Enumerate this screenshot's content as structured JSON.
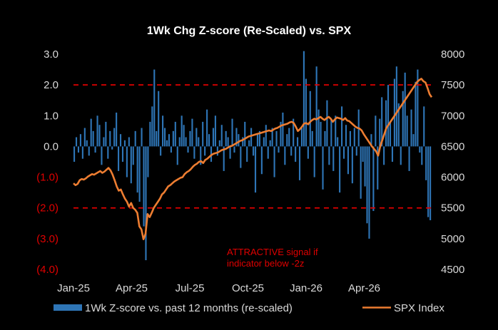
{
  "chart_data": {
    "type": "bar+line",
    "title": "1Wk Chg Z-score (Re-Scaled)  vs. SPX",
    "x_tick_labels": [
      "Jan-25",
      "Apr-25",
      "Jul-25",
      "Oct-25",
      "Jan-26",
      "Apr-26"
    ],
    "left_axis": {
      "ylim": [
        -4,
        3
      ],
      "tick_values": [
        3,
        2,
        1,
        0,
        -1,
        -2,
        -3,
        -4
      ],
      "tick_labels": [
        "3.0",
        "2.0",
        "1.0",
        "0.0",
        "(1.0)",
        "(2.0)",
        "(3.0)",
        "(4.0)"
      ]
    },
    "right_axis": {
      "ylim": [
        4500,
        8000
      ],
      "tick_values": [
        8000,
        7500,
        7000,
        6500,
        6000,
        5500,
        5000,
        4500
      ],
      "tick_labels": [
        "8000",
        "7500",
        "7000",
        "6500",
        "6000",
        "5500",
        "5000",
        "4500"
      ]
    },
    "reference_lines": [
      {
        "axis": "left",
        "value": 2,
        "style": "dashed",
        "color": "#e00000"
      },
      {
        "axis": "left",
        "value": -2,
        "style": "dashed",
        "color": "#e00000"
      }
    ],
    "annotation": {
      "lines": [
        "ATTRACTIVE  signal if",
        "indicator below -2z"
      ],
      "color": "#e00000"
    },
    "series": [
      {
        "name": "1Wk Z-score vs. past 12 months (re-scaled)",
        "kind": "bar",
        "axis": "left",
        "color": "#2e75b6",
        "values": [
          -0.5,
          0.3,
          -0.2,
          0.4,
          -0.4,
          0.6,
          0.2,
          -0.3,
          0.9,
          0.5,
          -0.2,
          1.0,
          0.7,
          -0.6,
          0.3,
          0.8,
          -0.4,
          0.5,
          -0.1,
          0.6,
          1.1,
          -0.8,
          0.4,
          -0.5,
          0.2,
          -1.0,
          0.3,
          -1.2,
          -0.6,
          0.5,
          -1.5,
          -1.8,
          0.6,
          -2.6,
          -3.7,
          -1.0,
          0.8,
          1.3,
          2.5,
          0.5,
          1.8,
          -0.3,
          1.0,
          0.6,
          0.2,
          0.4,
          -0.2,
          0.5,
          0.8,
          -0.6,
          0.3,
          1.0,
          0.7,
          0.3,
          -0.2,
          0.5,
          0.9,
          -0.4,
          0.6,
          0.3,
          -0.6,
          0.8,
          -0.3,
          1.2,
          0.4,
          -0.5,
          0.6,
          1.0,
          -0.3,
          0.2,
          0.7,
          -0.8,
          0.5,
          0.3,
          -0.4,
          0.9,
          -0.2,
          0.6,
          0.4,
          -0.7,
          0.3,
          0.8,
          -0.5,
          0.2,
          0.6,
          -0.3,
          -1.5,
          0.4,
          0.5,
          -0.9,
          0.3,
          0.7,
          -0.4,
          0.2,
          0.6,
          -1.0,
          0.5,
          -0.2,
          0.8,
          1.1,
          -0.6,
          0.4,
          0.6,
          -0.3,
          0.9,
          -0.5,
          0.3,
          -1.1,
          0.6,
          3.1,
          2.2,
          -0.4,
          1.8,
          0.5,
          -1.0,
          2.6,
          1.2,
          0.8,
          -1.4,
          0.5,
          1.5,
          -0.6,
          0.9,
          -0.8,
          1.0,
          0.3,
          -1.5,
          1.3,
          -0.4,
          0.7,
          -0.9,
          0.5,
          -1.2,
          0.6,
          -0.3,
          1.2,
          -1.7,
          -0.5,
          -1.3,
          -2.5,
          -3.0,
          0.4,
          -2.1,
          1.0,
          -1.4,
          0.9,
          1.6,
          -0.6,
          1.5,
          2.0,
          0.8,
          -0.5,
          2.2,
          2.6,
          1.4,
          -0.6,
          1.8,
          2.4,
          1.0,
          -0.8,
          1.2,
          0.4,
          2.1,
          2.5,
          -0.2,
          -0.6,
          1.3,
          -1.1,
          -2.3,
          -2.4
        ]
      },
      {
        "name": "SPX Index",
        "kind": "line",
        "axis": "right",
        "color": "#ed7d31",
        "values": [
          5900,
          5870,
          5890,
          5950,
          5970,
          5960,
          5980,
          6010,
          6030,
          6050,
          6040,
          6060,
          6080,
          6100,
          6070,
          6090,
          6120,
          6150,
          6110,
          6040,
          5950,
          5850,
          5780,
          5800,
          5720,
          5650,
          5600,
          5520,
          5580,
          5500,
          5470,
          5420,
          5200,
          5150,
          4990,
          5080,
          5400,
          5350,
          5420,
          5500,
          5550,
          5600,
          5650,
          5720,
          5750,
          5800,
          5850,
          5870,
          5900,
          5930,
          5950,
          5970,
          5990,
          6000,
          6050,
          6080,
          6100,
          6130,
          6170,
          6200,
          6220,
          6250,
          6260,
          6230,
          6280,
          6300,
          6330,
          6360,
          6380,
          6390,
          6400,
          6420,
          6440,
          6450,
          6460,
          6480,
          6500,
          6510,
          6530,
          6550,
          6570,
          6590,
          6600,
          6620,
          6640,
          6660,
          6670,
          6680,
          6690,
          6700,
          6710,
          6720,
          6730,
          6740,
          6750,
          6760,
          6750,
          6770,
          6790,
          6800,
          6820,
          6840,
          6850,
          6860,
          6870,
          6890,
          6900,
          6880,
          6820,
          6750,
          6780,
          6820,
          6870,
          6880,
          6860,
          6900,
          6930,
          6950,
          6940,
          6960,
          6980,
          6950,
          6930,
          6960,
          6980,
          6950,
          6900,
          6940,
          6970,
          6960,
          6950,
          6930,
          6960,
          6920,
          6910,
          6880,
          6850,
          6820,
          6800,
          6790,
          6760,
          6700,
          6650,
          6600,
          6550,
          6500,
          6460,
          6420,
          6350,
          6500,
          6600,
          6700,
          6800,
          6850,
          6900,
          6950,
          7000,
          7050,
          7100,
          7150,
          7200,
          7250,
          7300,
          7350,
          7400,
          7450,
          7500,
          7550,
          7580,
          7600,
          7560,
          7540,
          7450,
          7350,
          7300
        ]
      }
    ],
    "legend": {
      "placement": "bottom"
    }
  }
}
